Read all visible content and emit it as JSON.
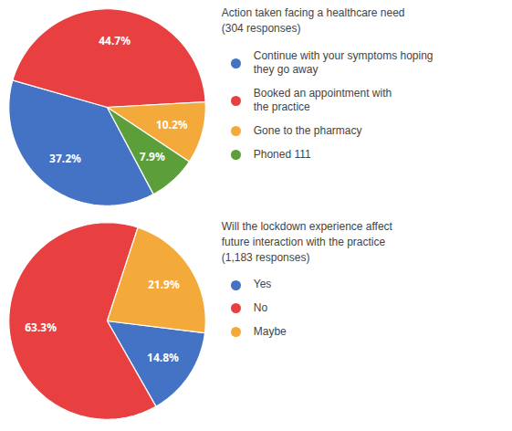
{
  "chart_data": [
    {
      "type": "pie",
      "title": "Action taken facing a healthcare need\n(304 responses)",
      "categories": [
        "Continue with your symptoms hoping\nthey go away",
        "Booked an appointment with\nthe practice",
        "Gone to the pharmacy",
        "Phoned 111"
      ],
      "values": [
        37.2,
        44.7,
        10.2,
        7.9
      ],
      "value_labels": [
        "37.2%",
        "44.7%",
        "10.2%",
        "7.9%"
      ],
      "colors": [
        "#4472C4",
        "#E84040",
        "#F4A93B",
        "#5B9E3A"
      ],
      "data_labels": true,
      "legend": "right"
    },
    {
      "type": "pie",
      "title": "Will the lockdown experience affect\nfuture interaction with the practice\n(1,183 responses)",
      "categories": [
        "Yes",
        "No",
        "Maybe"
      ],
      "values": [
        14.8,
        63.3,
        21.9
      ],
      "value_labels": [
        "14.8%",
        "63.3%",
        "21.9%"
      ],
      "colors": [
        "#4472C4",
        "#E84040",
        "#F4A93B"
      ],
      "data_labels": true,
      "legend": "right"
    }
  ]
}
